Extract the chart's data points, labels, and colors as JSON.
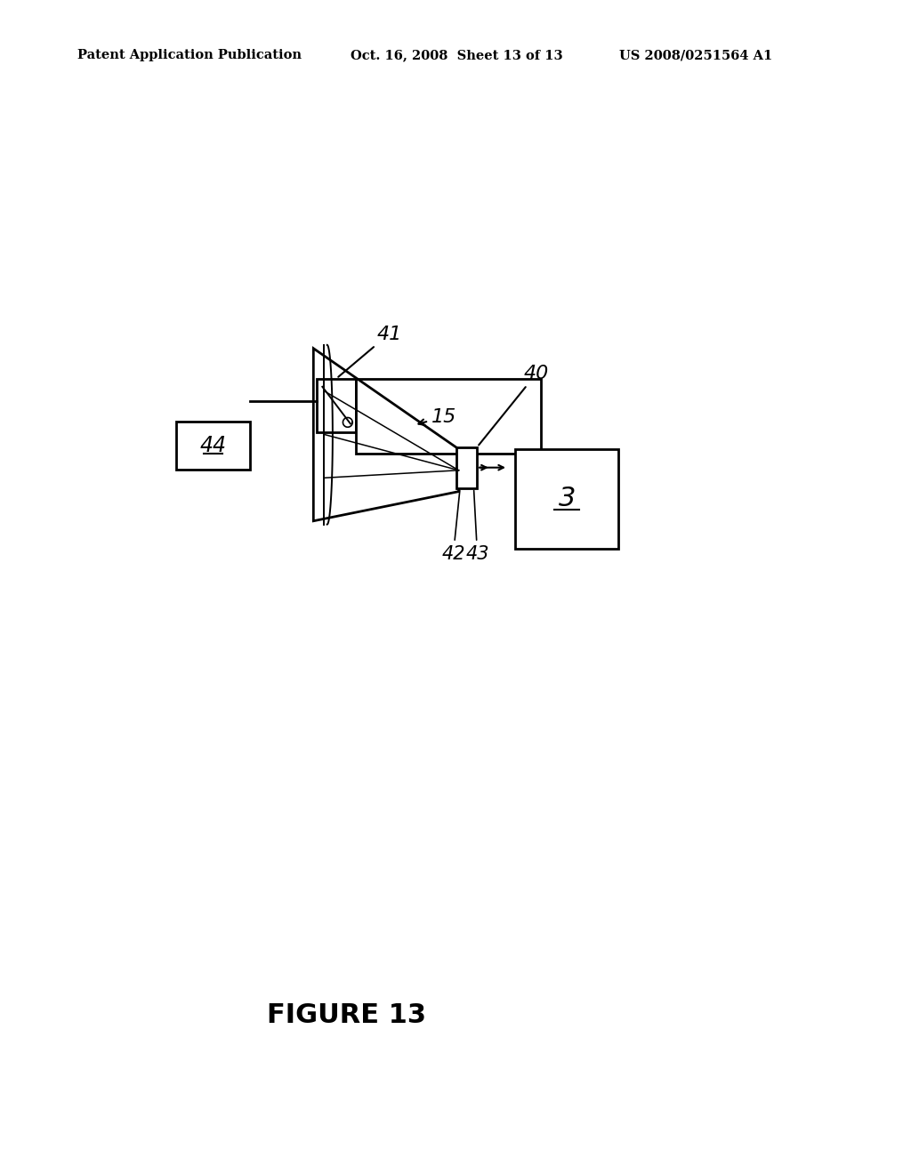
{
  "bg_color": "#ffffff",
  "header_left": "Patent Application Publication",
  "header_mid": "Oct. 16, 2008  Sheet 13 of 13",
  "header_right": "US 2008/0251564 A1",
  "figure_label": "FIGURE 13",
  "lw": 2.0,
  "lw_thin": 1.4
}
